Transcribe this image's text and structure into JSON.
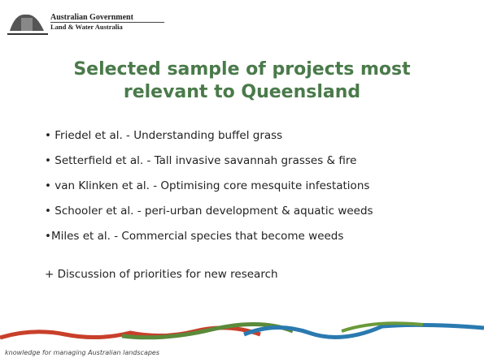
{
  "header": {
    "org": "Australian Government",
    "suborg": "Land & Water Australia"
  },
  "title": "Selected sample of projects most relevant to Queensland",
  "items": [
    "• Friedel et al. - Understanding buffel grass",
    "• Setterfield et al. - Tall invasive savannah grasses & fire",
    "• van Klinken et al. - Optimising core mesquite infestations",
    "• Schooler et al. - peri-urban development & aquatic weeds",
    "•Miles et al. - Commercial species that become weeds"
  ],
  "note": "+ Discussion of priorities for new research",
  "footer": "knowledge for managing Australian landscapes"
}
